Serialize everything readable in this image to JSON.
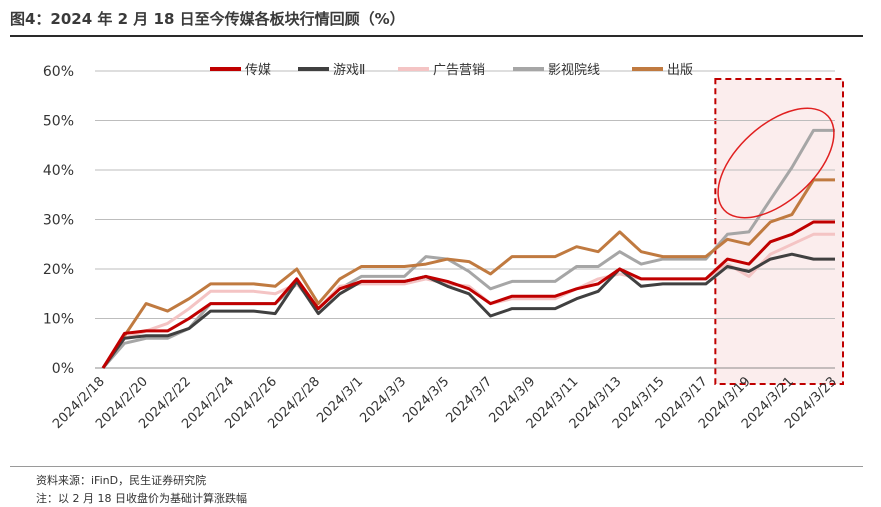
{
  "title": "图4：2024 年 2 月 18 日至今传媒各板块行情回顾（%）",
  "source": "资料来源：iFinD，民生证券研究院",
  "note": "注：以 2 月 18 日收盘价为基础计算涨跌幅",
  "chart_data": {
    "type": "line",
    "x": [
      "2024/2/18",
      "2024/2/19",
      "2024/2/20",
      "2024/2/21",
      "2024/2/22",
      "2024/2/23",
      "2024/2/24",
      "2024/2/25",
      "2024/2/26",
      "2024/2/27",
      "2024/2/28",
      "2024/2/29",
      "2024/3/1",
      "2024/3/2",
      "2024/3/3",
      "2024/3/4",
      "2024/3/5",
      "2024/3/6",
      "2024/3/7",
      "2024/3/8",
      "2024/3/9",
      "2024/3/10",
      "2024/3/11",
      "2024/3/12",
      "2024/3/13",
      "2024/3/14",
      "2024/3/15",
      "2024/3/16",
      "2024/3/17",
      "2024/3/18",
      "2024/3/19",
      "2024/3/20",
      "2024/3/21",
      "2024/3/22",
      "2024/3/23"
    ],
    "x_tick_labels": [
      "2024/2/18",
      "2024/2/20",
      "2024/2/22",
      "2024/2/24",
      "2024/2/26",
      "2024/2/28",
      "2024/3/1",
      "2024/3/3",
      "2024/3/5",
      "2024/3/7",
      "2024/3/9",
      "2024/3/11",
      "2024/3/13",
      "2024/3/15",
      "2024/3/17",
      "2024/3/19",
      "2024/3/21",
      "2024/3/23"
    ],
    "ylim": [
      0,
      60
    ],
    "y_ticks": [
      0,
      10,
      20,
      30,
      40,
      50,
      60
    ],
    "y_tick_suffix": "%",
    "legend_position": "top",
    "series": [
      {
        "name": "传媒",
        "color": "#c00000",
        "values": [
          0,
          7,
          7.5,
          7.5,
          10,
          13,
          13,
          13,
          13,
          18,
          12,
          16,
          17.5,
          17.5,
          17.5,
          18.5,
          17.5,
          16,
          13,
          14.5,
          14.5,
          14.5,
          16,
          17,
          20,
          18,
          18,
          18,
          18,
          22,
          21,
          25.5,
          27,
          29.5,
          29.5
        ]
      },
      {
        "name": "游戏Ⅱ",
        "color": "#404040",
        "values": [
          0,
          6,
          6.5,
          6.5,
          8,
          11.5,
          11.5,
          11.5,
          11,
          17.5,
          11,
          15,
          17.5,
          17.5,
          17.5,
          18.5,
          16.5,
          15,
          10.5,
          12,
          12,
          12,
          14,
          15.5,
          20,
          16.5,
          17,
          17,
          17,
          20.5,
          19.5,
          22,
          23,
          22,
          22
        ]
      },
      {
        "name": "广告营销",
        "color": "#f4c4c4",
        "values": [
          0,
          6,
          7.5,
          9,
          12,
          15.5,
          15.5,
          15.5,
          15,
          17,
          12,
          16.5,
          17,
          17,
          17,
          18,
          17,
          16.5,
          13,
          14,
          14,
          14,
          16,
          18,
          19,
          18,
          18,
          18,
          18,
          21,
          18.5,
          23,
          25,
          27,
          27
        ]
      },
      {
        "name": "影视院线",
        "color": "#a6a6a6",
        "values": [
          0,
          5,
          6,
          6,
          8,
          13,
          13,
          13,
          13,
          17,
          12,
          16,
          18.5,
          18.5,
          18.5,
          22.5,
          22,
          19.5,
          16,
          17.5,
          17.5,
          17.5,
          20.5,
          20.5,
          23.5,
          21,
          22,
          22,
          22,
          27,
          27.5,
          34,
          40.5,
          48,
          48
        ]
      },
      {
        "name": "出版",
        "color": "#c07a40",
        "values": [
          0,
          6.5,
          13,
          11.5,
          14,
          17,
          17,
          17,
          16.5,
          20,
          13,
          18,
          20.5,
          20.5,
          20.5,
          21,
          22,
          21.5,
          19,
          22.5,
          22.5,
          22.5,
          24.5,
          23.5,
          27.5,
          23.5,
          22.5,
          22.5,
          22.5,
          26,
          25,
          29.5,
          31,
          38,
          38
        ]
      }
    ],
    "highlight": {
      "x_start": "2024/3/18",
      "x_end": "2024/3/23",
      "color": "#c00000"
    }
  }
}
